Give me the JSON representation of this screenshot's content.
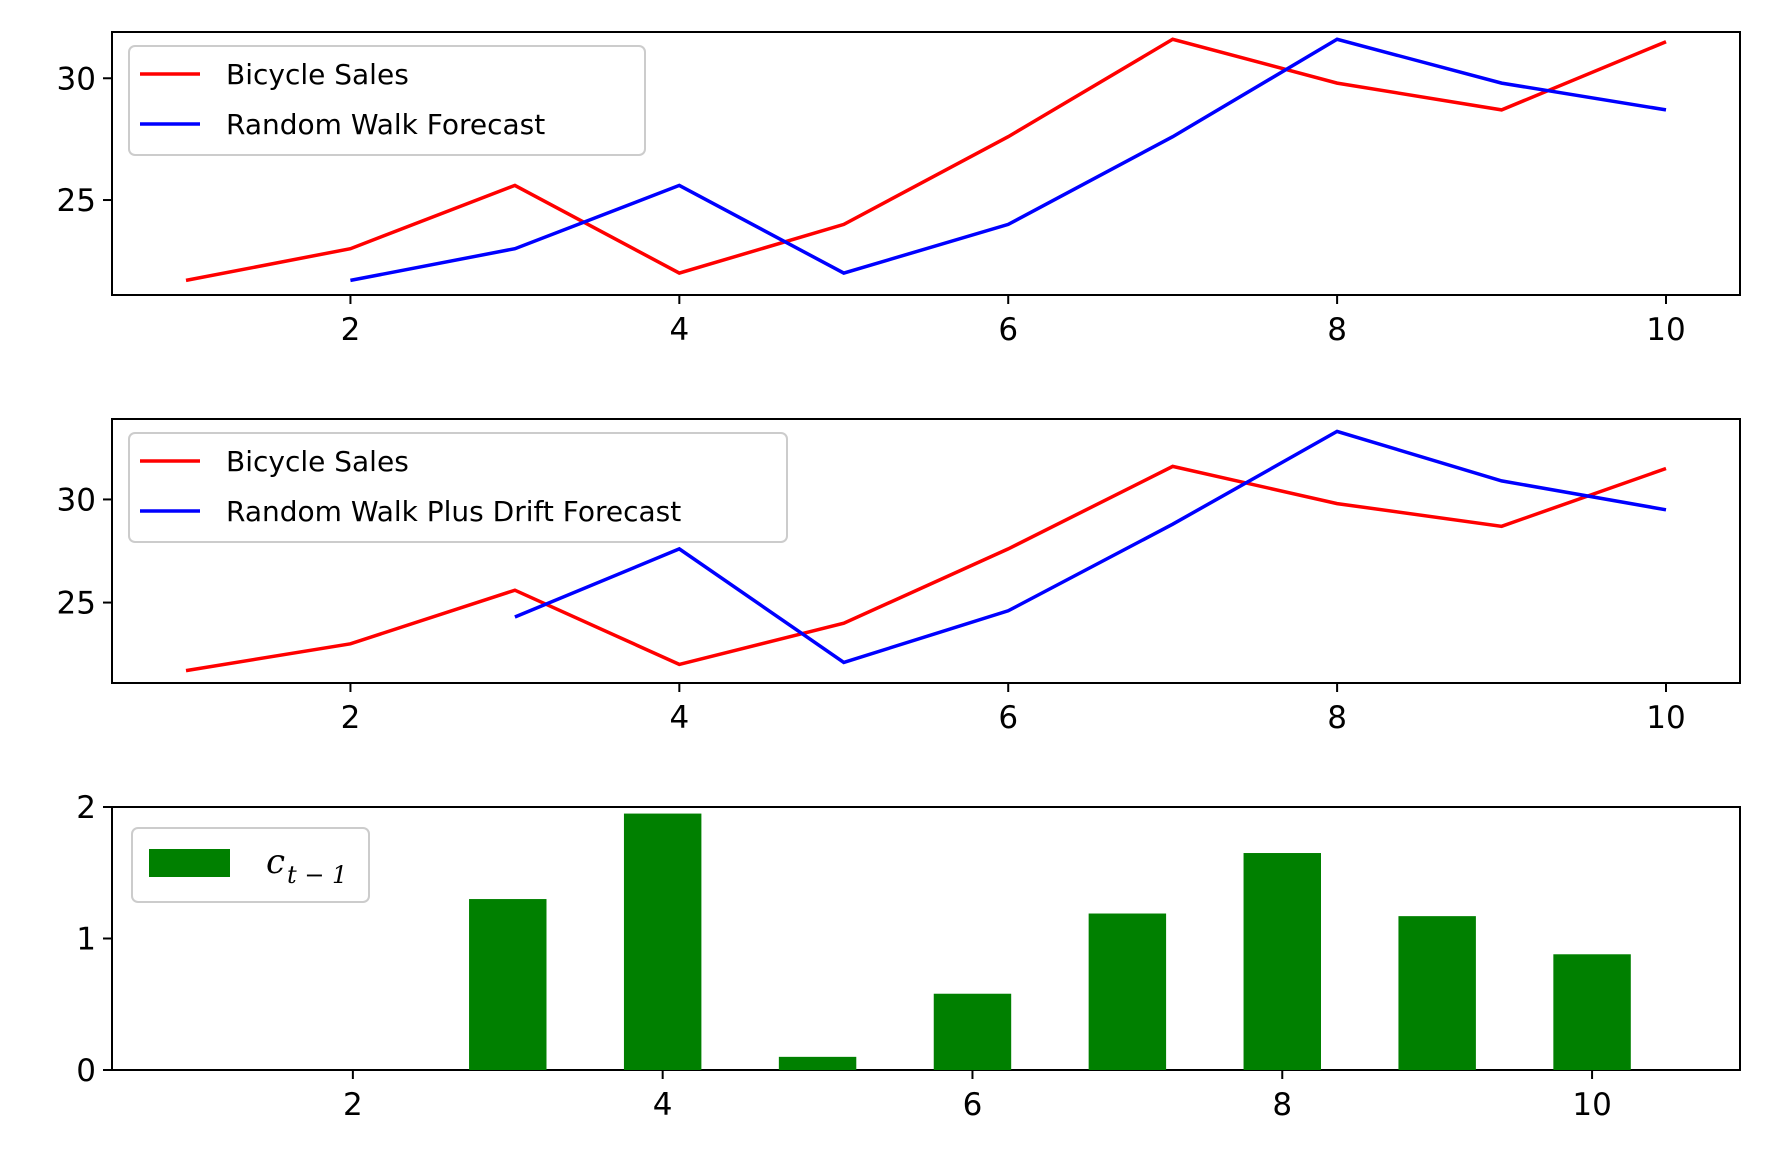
{
  "chart_data": [
    {
      "type": "line",
      "x": [
        1,
        2,
        3,
        4,
        5,
        6,
        7,
        8,
        9,
        10
      ],
      "series": [
        {
          "name": "Bicycle Sales",
          "color": "#ff0000",
          "values": [
            21.7,
            23.0,
            25.6,
            22.0,
            24.0,
            27.6,
            31.6,
            29.8,
            28.7,
            31.5
          ]
        },
        {
          "name": "Random Walk Forecast",
          "color": "#0000ff",
          "values": [
            null,
            21.7,
            23.0,
            25.6,
            22.0,
            24.0,
            27.6,
            31.6,
            29.8,
            28.7
          ]
        }
      ],
      "xlim": [
        0.55,
        10.45
      ],
      "ylim": [
        21.1,
        31.9
      ],
      "xticks": [
        "2",
        "4",
        "6",
        "8",
        "10"
      ],
      "yticks": [
        "25",
        "30"
      ],
      "legend": "upper-left",
      "grid": false
    },
    {
      "type": "line",
      "x": [
        1,
        2,
        3,
        4,
        5,
        6,
        7,
        8,
        9,
        10
      ],
      "series": [
        {
          "name": "Bicycle Sales",
          "color": "#ff0000",
          "values": [
            21.7,
            23.0,
            25.6,
            22.0,
            24.0,
            27.6,
            31.6,
            29.8,
            28.7,
            31.5
          ]
        },
        {
          "name": "Random Walk Plus Drift Forecast",
          "color": "#0000ff",
          "values": [
            null,
            null,
            24.3,
            27.6,
            22.1,
            24.6,
            28.8,
            33.3,
            30.9,
            29.5
          ]
        }
      ],
      "xlim": [
        0.55,
        10.45
      ],
      "ylim": [
        21.1,
        33.9
      ],
      "xticks": [
        "2",
        "4",
        "6",
        "8",
        "10"
      ],
      "yticks": [
        "25",
        "30"
      ],
      "legend": "upper-left",
      "grid": false
    },
    {
      "type": "bar",
      "x": [
        1,
        2,
        3,
        4,
        5,
        6,
        7,
        8,
        9,
        10
      ],
      "series": [
        {
          "name": "c_{t-1}",
          "color": "#008000",
          "values": [
            0,
            0,
            1.3,
            1.95,
            0.1,
            0.58,
            1.19,
            1.65,
            1.17,
            0.88
          ]
        }
      ],
      "legend_label": {
        "base": "c",
        "subscript": "t − 1"
      },
      "xlim": [
        0.445,
        10.955
      ],
      "ylim": [
        0,
        2.0
      ],
      "xticks": [
        "2",
        "4",
        "6",
        "8",
        "10"
      ],
      "yticks": [
        "0",
        "1",
        "2"
      ],
      "legend": "upper-left",
      "grid": false
    }
  ]
}
